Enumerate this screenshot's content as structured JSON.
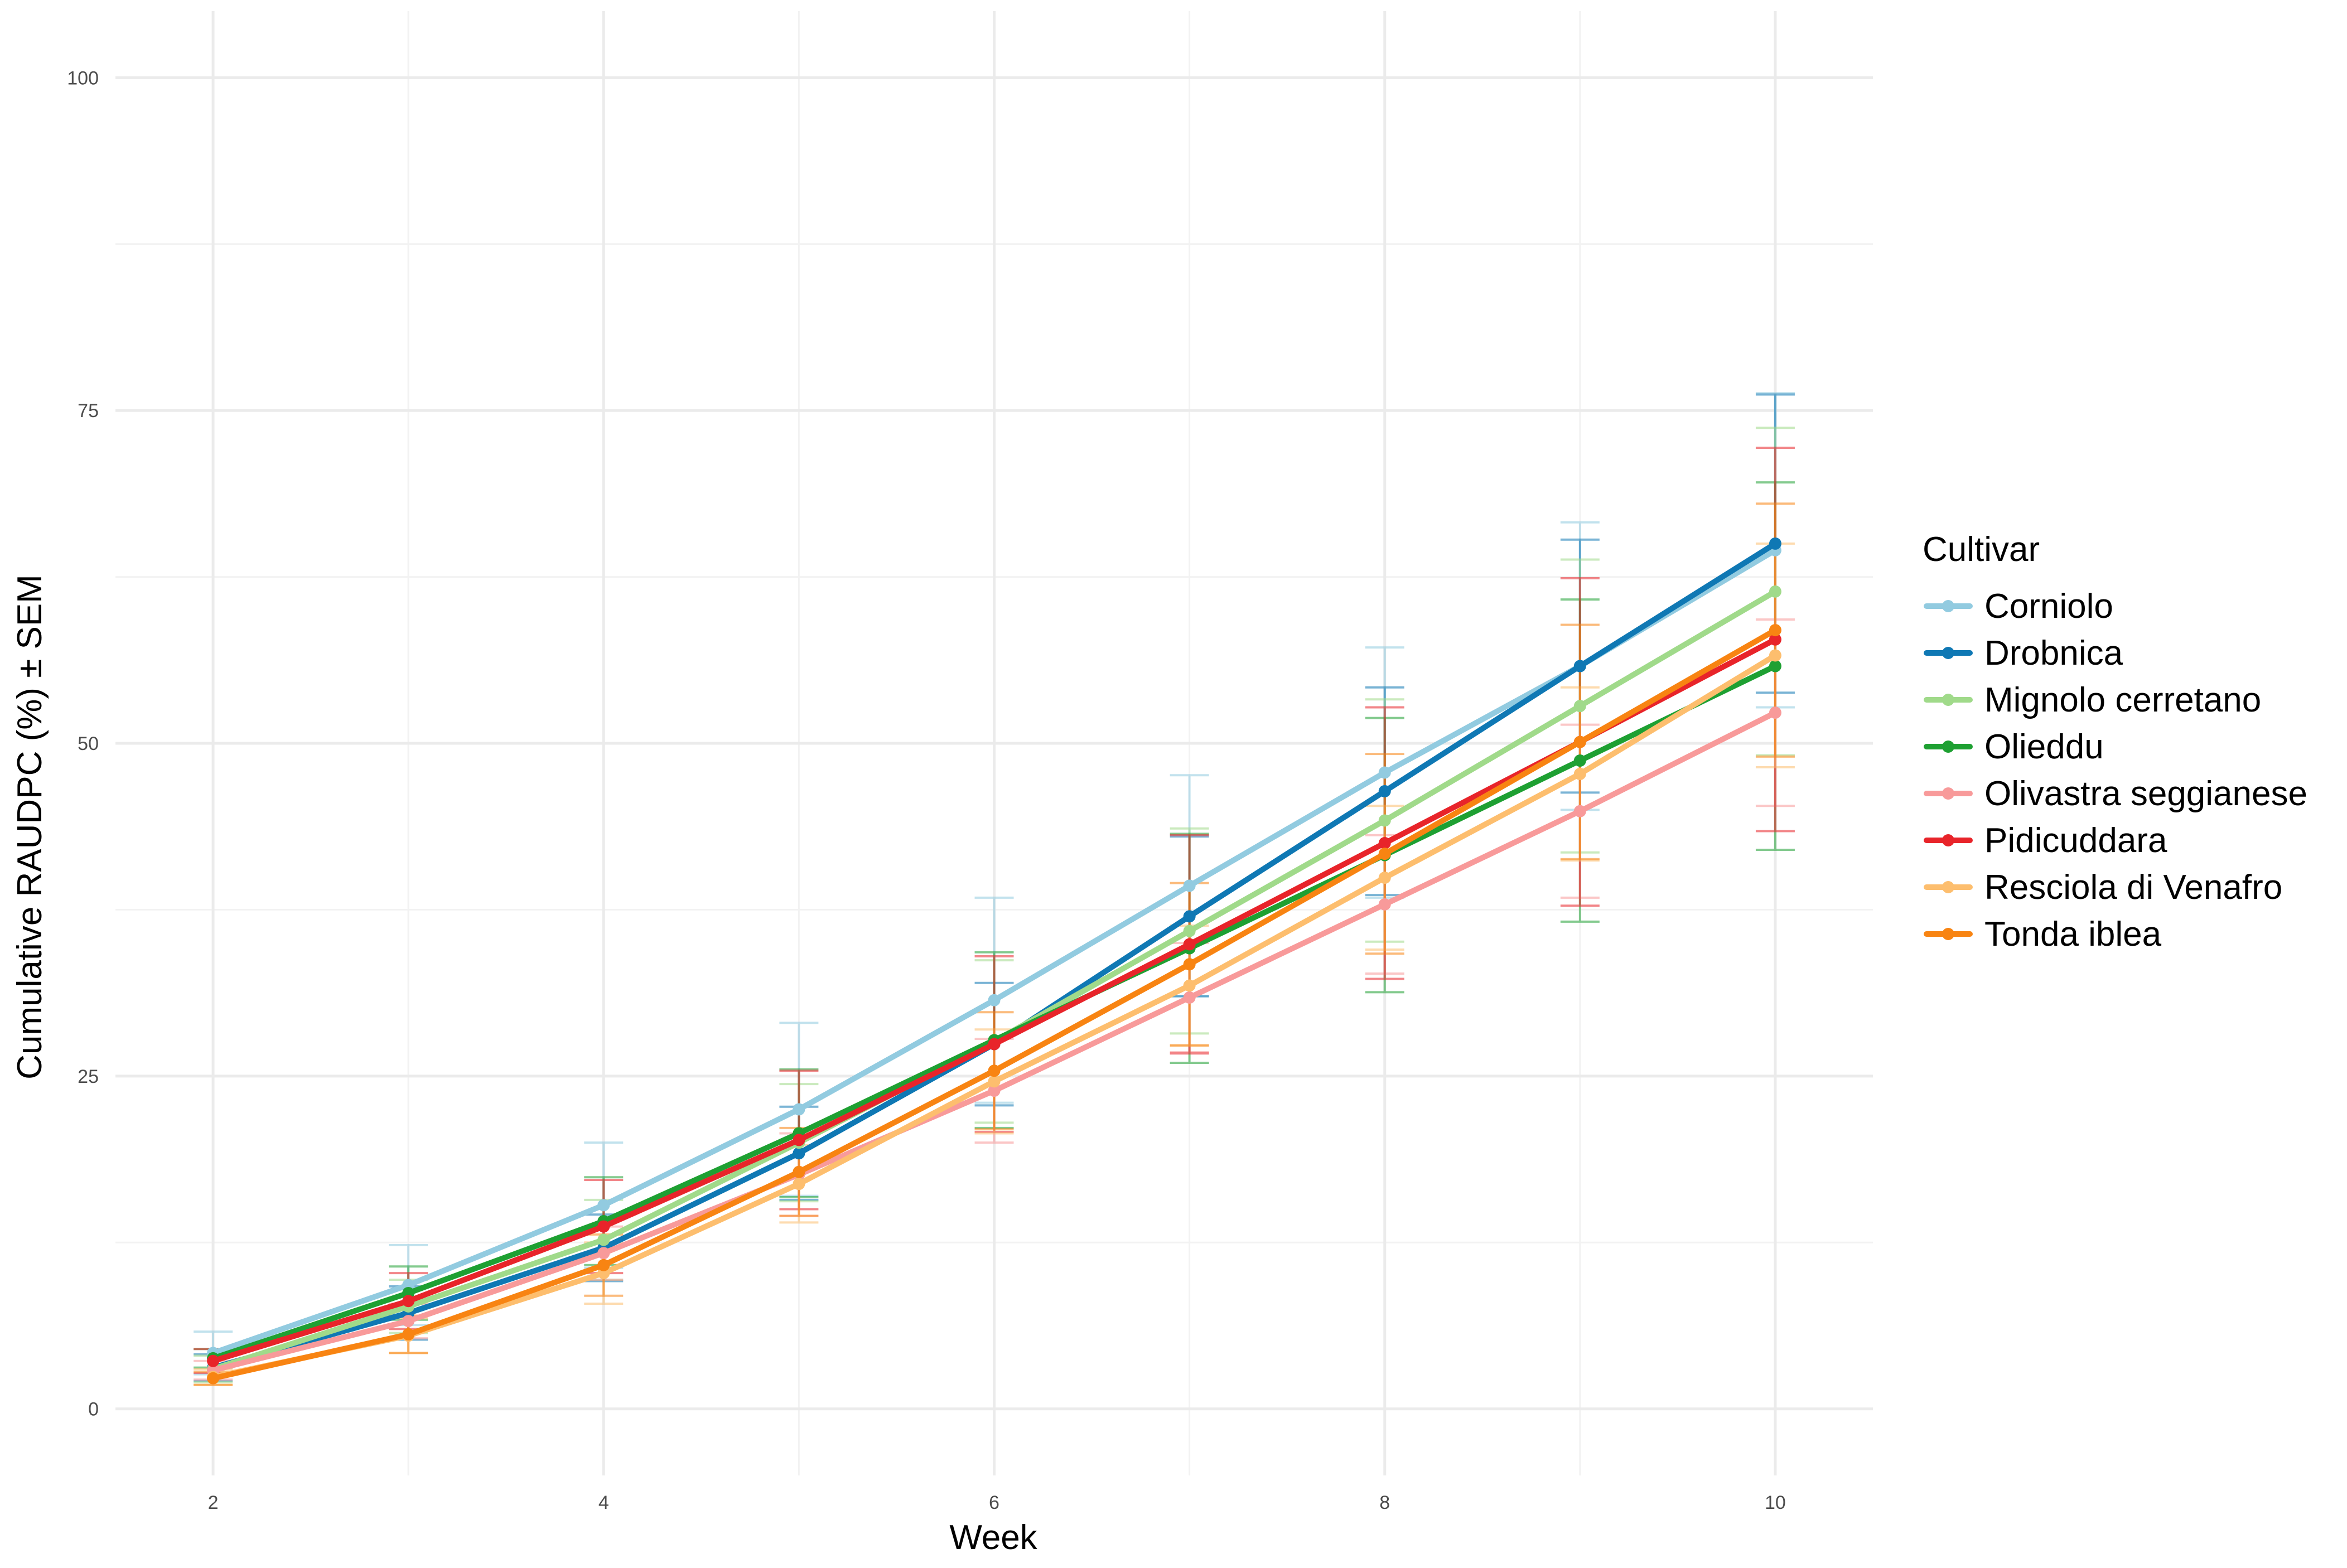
{
  "chart_data": {
    "type": "line",
    "title": "",
    "xlabel": "Week",
    "ylabel": "Cumulative RAUDPC (%) ± SEM",
    "x": [
      2,
      3,
      4,
      5,
      6,
      7,
      8,
      9,
      10
    ],
    "x_ticks": [
      2,
      4,
      6,
      8,
      10
    ],
    "y_ticks": [
      0,
      25,
      50,
      75,
      100
    ],
    "xlim": [
      1.5,
      10.5
    ],
    "ylim": [
      -5,
      105
    ],
    "grid": true,
    "legend": {
      "title": "Cultivar",
      "position": "right"
    },
    "series": [
      {
        "name": "Corniolo",
        "color": "#92cbe0",
        "values": [
          4.2,
          9.3,
          15.3,
          22.5,
          30.7,
          39.3,
          47.8,
          55.8,
          64.5
        ],
        "sem": [
          1.6,
          3.0,
          4.7,
          6.5,
          7.7,
          8.3,
          9.4,
          10.8,
          11.8
        ]
      },
      {
        "name": "Drobnica",
        "color": "#0f78b4",
        "values": [
          3.1,
          7.2,
          12.1,
          19.2,
          27.4,
          37.0,
          46.4,
          55.8,
          65.0
        ],
        "sem": [
          1.0,
          2.0,
          2.5,
          3.5,
          4.6,
          6.0,
          7.8,
          9.5,
          11.2
        ]
      },
      {
        "name": "Mignolo cerretano",
        "color": "#a0da8a",
        "values": [
          3.0,
          7.7,
          12.7,
          20.0,
          27.6,
          35.9,
          44.2,
          52.8,
          61.4
        ],
        "sem": [
          1.0,
          2.0,
          3.0,
          4.4,
          6.1,
          7.7,
          9.1,
          11.0,
          12.3
        ]
      },
      {
        "name": "Olieddu",
        "color": "#1ea032",
        "values": [
          3.8,
          8.7,
          14.1,
          20.7,
          27.7,
          34.6,
          41.6,
          48.7,
          55.8
        ],
        "sem": [
          0.7,
          2.0,
          3.3,
          4.8,
          6.6,
          8.6,
          10.3,
          12.1,
          13.8
        ]
      },
      {
        "name": "Olivastra seggianese",
        "color": "#f89a9a",
        "values": [
          2.9,
          6.6,
          11.7,
          17.6,
          23.9,
          30.9,
          37.9,
          44.9,
          52.3
        ],
        "sem": [
          0.7,
          1.3,
          2.0,
          3.1,
          3.9,
          4.1,
          5.2,
          6.5,
          7.0
        ]
      },
      {
        "name": "Pidicuddara",
        "color": "#e8242a",
        "values": [
          3.6,
          8.1,
          13.7,
          20.2,
          27.4,
          34.9,
          42.5,
          50.1,
          57.8
        ],
        "sem": [
          0.9,
          2.1,
          3.5,
          5.2,
          6.6,
          8.2,
          10.2,
          12.3,
          14.4
        ]
      },
      {
        "name": "Resciola di Venafro",
        "color": "#fdbe6e",
        "values": [
          2.4,
          5.5,
          10.2,
          16.9,
          24.6,
          31.8,
          39.9,
          47.7,
          56.6
        ],
        "sem": [
          0.6,
          1.3,
          2.3,
          2.9,
          3.9,
          4.5,
          5.4,
          6.5,
          8.4
        ]
      },
      {
        "name": "Tonda iblea",
        "color": "#f88412",
        "values": [
          2.3,
          5.6,
          10.8,
          17.8,
          25.4,
          33.4,
          41.7,
          50.1,
          58.5
        ],
        "sem": [
          0.5,
          1.4,
          2.3,
          3.3,
          4.4,
          6.1,
          7.5,
          8.8,
          9.5
        ]
      }
    ]
  }
}
